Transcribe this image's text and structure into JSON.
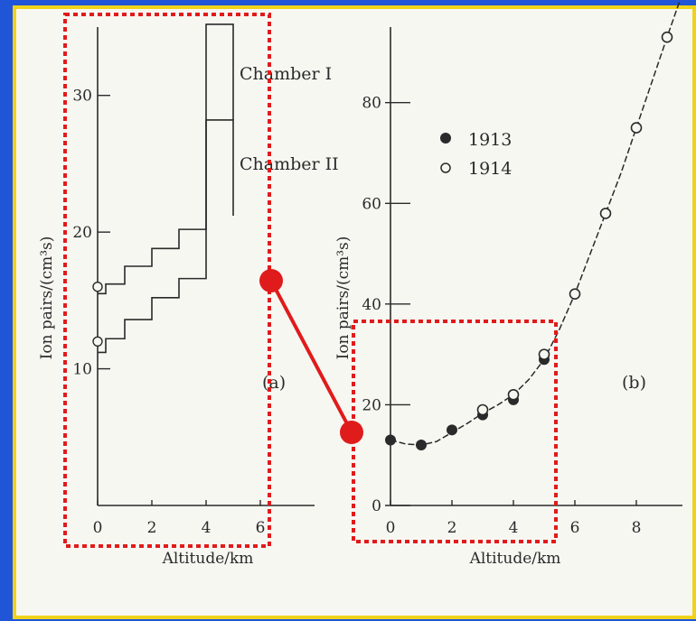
{
  "colors": {
    "background_border": "#1f55d6",
    "inner_border": "#f1d21a",
    "panel": "#f7f7f2",
    "ink": "#2a2a2a",
    "highlight": "#e01b1b"
  },
  "chart_data": [
    {
      "type": "line",
      "panel_label": "(a)",
      "xlabel": "Altitude/km",
      "ylabel": "Ion pairs/(cm³s)",
      "xlim": [
        0,
        7
      ],
      "ylim": [
        0,
        35
      ],
      "xticks": [
        0,
        2,
        4,
        6
      ],
      "xtick_labels": [
        "0",
        "2",
        "4",
        "6"
      ],
      "yticks": [
        10,
        20,
        30
      ],
      "ytick_labels": [
        "10",
        "20",
        "30"
      ],
      "series": [
        {
          "name": "Chamber I",
          "step_x": [
            0,
            0.3,
            1,
            2,
            3,
            4,
            5
          ],
          "step_y": [
            15.5,
            16.2,
            17.5,
            18.8,
            20.2,
            35.2
          ],
          "marker_x": 0,
          "marker_y": 16
        },
        {
          "name": "Chamber II",
          "step_x": [
            0,
            0.3,
            1,
            2,
            3,
            4,
            5
          ],
          "step_y": [
            11.2,
            12.2,
            13.6,
            15.2,
            16.6,
            28.2
          ],
          "marker_x": 0,
          "marker_y": 12
        }
      ]
    },
    {
      "type": "scatter",
      "panel_label": "(b)",
      "xlabel": "Altitude/km",
      "ylabel": "Ion pairs/(cm³s)",
      "xlim": [
        0,
        9.5
      ],
      "ylim": [
        0,
        95
      ],
      "xticks": [
        0,
        2,
        4,
        6,
        8
      ],
      "xtick_labels": [
        "0",
        "2",
        "4",
        "6",
        "8"
      ],
      "yticks": [
        0,
        20,
        40,
        60,
        80
      ],
      "ytick_labels": [
        "0",
        "20",
        "40",
        "60",
        "80"
      ],
      "legend_position": "top-left",
      "series": [
        {
          "name": "1913",
          "marker": "filled",
          "x": [
            0,
            1,
            2,
            3,
            4,
            5
          ],
          "y": [
            13,
            12,
            15,
            18,
            21,
            29
          ]
        },
        {
          "name": "1914",
          "marker": "open",
          "x": [
            3,
            4,
            5,
            6,
            7,
            8,
            9
          ],
          "y": [
            19,
            22,
            30,
            42,
            58,
            75,
            93
          ]
        }
      ],
      "fit_curve": {
        "x": [
          0,
          0.5,
          1,
          1.5,
          2,
          2.5,
          3,
          3.5,
          4,
          4.5,
          5,
          5.5,
          6,
          6.5,
          7,
          7.5,
          8,
          8.5,
          9,
          9.4
        ],
        "y": [
          13,
          12.2,
          12,
          12.7,
          14.5,
          16.3,
          18.3,
          20,
          22,
          25,
          29,
          35,
          42,
          50,
          58,
          66,
          75,
          84,
          93,
          100
        ]
      }
    }
  ]
}
